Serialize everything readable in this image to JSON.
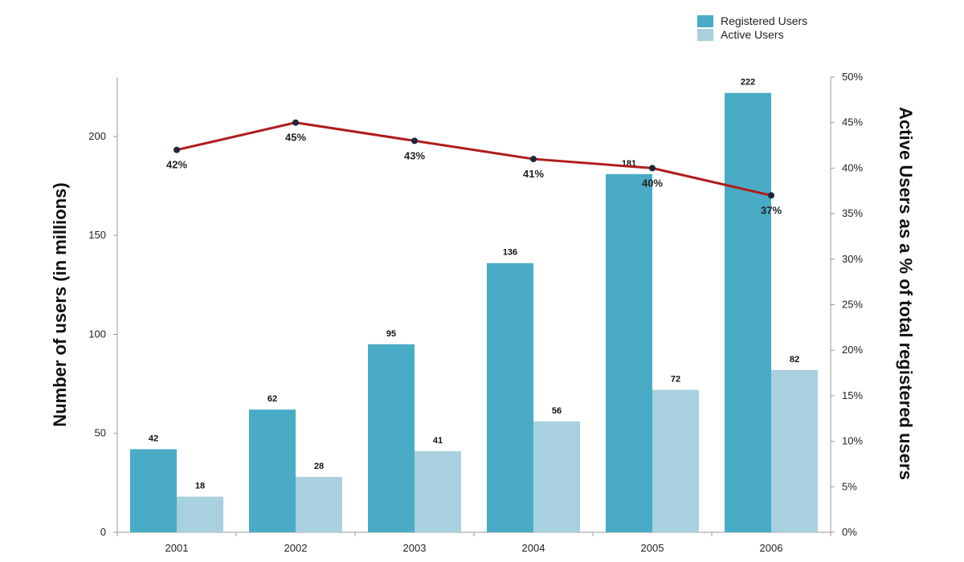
{
  "chart_data": {
    "type": "bar",
    "categories": [
      "2001",
      "2002",
      "2003",
      "2004",
      "2005",
      "2006"
    ],
    "series": [
      {
        "name": "Registered Users",
        "type": "bar",
        "axis": "left",
        "color": "#4AABC6",
        "values": [
          42,
          62,
          95,
          136,
          181,
          222
        ]
      },
      {
        "name": "Active Users",
        "type": "bar",
        "axis": "left",
        "color": "#A9D0DE",
        "values": [
          18,
          28,
          41,
          56,
          72,
          82
        ]
      },
      {
        "type": "line",
        "axis": "right",
        "color": "#B01C1C",
        "values": [
          42,
          45,
          43,
          41,
          40,
          37
        ],
        "labels": [
          "42%",
          "45%",
          "43%",
          "41%",
          "40%",
          "37%"
        ]
      }
    ],
    "ylabel": "Number of users (in millions)",
    "y2label": "Active Users as a % of total registered users",
    "ylim": [
      0,
      230
    ],
    "yticks": [
      0,
      50,
      100,
      150,
      200
    ],
    "y2lim": [
      0,
      50
    ],
    "y2ticks": [
      "0%",
      "5%",
      "10%",
      "15%",
      "20%",
      "25%",
      "30%",
      "35%",
      "40%",
      "45%",
      "50%"
    ],
    "legend_position": "top-right",
    "grid": false
  }
}
